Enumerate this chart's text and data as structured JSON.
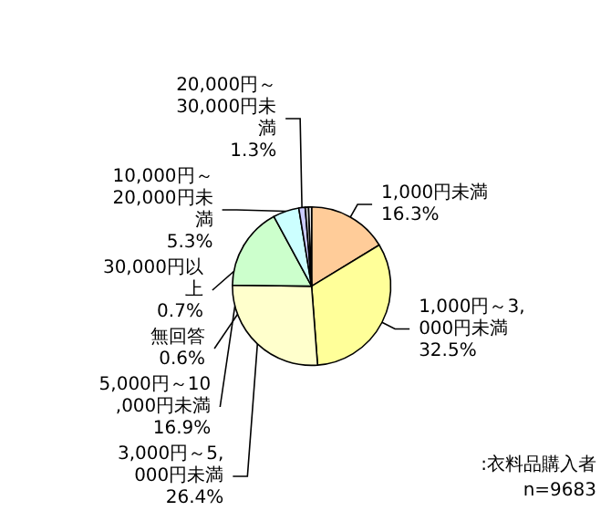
{
  "chart_data": {
    "type": "pie",
    "categories": [
      "1,000円未満",
      "1,000円～3,000円未満",
      "3,000円～5,000円未満",
      "5,000円～10,000円未満",
      "10,000円～20,000円未満",
      "20,000円～30,000円未満",
      "30,000円以上",
      "無回答"
    ],
    "values": [
      16.3,
      32.5,
      26.4,
      16.9,
      5.3,
      1.3,
      0.7,
      0.6
    ],
    "value_labels": [
      "16.3%",
      "32.5%",
      "26.4%",
      "16.9%",
      "5.3%",
      "1.3%",
      "0.7%",
      "0.6%"
    ],
    "colors": [
      "#ffcc99",
      "#ffff99",
      "#ffffcc",
      "#ccffcc",
      "#ccffff",
      "#ccccff",
      "#c0c0c0",
      "#ffffff"
    ],
    "annotations": [
      ":衣料品購入者",
      "n=9683"
    ],
    "legend": false
  }
}
